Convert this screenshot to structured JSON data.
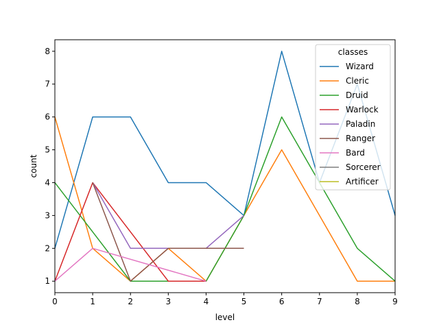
{
  "chart_data": {
    "type": "line",
    "xlabel": "level",
    "ylabel": "count",
    "xlim": [
      0,
      9
    ],
    "ylim": [
      0.65,
      8.35
    ],
    "xticks": [
      0,
      1,
      2,
      3,
      4,
      5,
      6,
      7,
      8,
      9
    ],
    "yticks": [
      1,
      2,
      3,
      4,
      5,
      6,
      7,
      8
    ],
    "grid": false,
    "legend": {
      "title": "classes",
      "placement": "top-right"
    },
    "series": [
      {
        "name": "Wizard",
        "color": "#1f77b4",
        "x": [
          0,
          1,
          2,
          3,
          4,
          5,
          6,
          7,
          8,
          9
        ],
        "y": [
          2,
          6,
          6,
          4,
          4,
          3,
          8,
          4,
          7,
          3
        ]
      },
      {
        "name": "Cleric",
        "color": "#ff7f0e",
        "x": [
          0,
          1,
          2,
          3,
          4,
          5,
          6,
          7,
          8,
          9
        ],
        "y": [
          6,
          2,
          1,
          2,
          1,
          3,
          5,
          3,
          1,
          1
        ]
      },
      {
        "name": "Druid",
        "color": "#2ca02c",
        "x": [
          0,
          1,
          2,
          3,
          4,
          5,
          6,
          7,
          8,
          9
        ],
        "y": [
          4,
          2.5,
          1,
          1,
          1,
          3,
          6,
          4,
          2,
          1
        ]
      },
      {
        "name": "Warlock",
        "color": "#d62728",
        "x": [
          0,
          1,
          2,
          3,
          4
        ],
        "y": [
          1,
          4,
          2.5,
          1,
          1
        ]
      },
      {
        "name": "Paladin",
        "color": "#9467bd",
        "x": [
          1,
          2,
          3,
          4,
          5
        ],
        "y": [
          4,
          2,
          2,
          2,
          3
        ]
      },
      {
        "name": "Ranger",
        "color": "#8c564b",
        "x": [
          1,
          2,
          3,
          4,
          5
        ],
        "y": [
          4,
          1,
          2,
          2,
          2
        ]
      },
      {
        "name": "Bard",
        "color": "#e377c2",
        "x": [
          0,
          1,
          4
        ],
        "y": [
          1,
          2,
          1
        ]
      },
      {
        "name": "Sorcerer",
        "color": "#7f7f7f",
        "x": [],
        "y": []
      },
      {
        "name": "Artificer",
        "color": "#bcbd22",
        "x": [],
        "y": []
      }
    ]
  }
}
